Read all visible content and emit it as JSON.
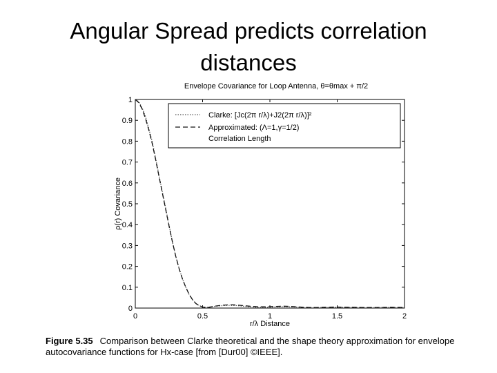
{
  "slide": {
    "title_line1": "Angular Spread predicts correlation",
    "title_line2": "distances"
  },
  "caption": {
    "figure_number": "Figure 5.35",
    "text": "Comparison between Clarke theoretical and the shape theory approximation for envelope autocovariance functions for Hx-case [from [Dur00] ©IEEE]."
  },
  "chart_data": {
    "type": "line",
    "title": "Envelope Covariance for Loop Antenna, θ=θmax + π/2",
    "xlabel": "r/λ  Distance",
    "ylabel": "ρ(r)  Covariance",
    "xlim": [
      0,
      2
    ],
    "ylim": [
      0,
      1
    ],
    "xticks": [
      "0",
      "0.5",
      "1",
      "1.5",
      "2"
    ],
    "yticks": [
      "0",
      "0.1",
      "0.2",
      "0.3",
      "0.4",
      "0.5",
      "0.6",
      "0.7",
      "0.8",
      "0.9",
      "1"
    ],
    "grid": false,
    "legend_position": "top-right",
    "legend": [
      "Clarke: [Jc(2π r/λ)+J2(2π r/λ)]²",
      "Approximated: (Λ=1,γ=1/2)",
      "Correlation Length"
    ],
    "series": [
      {
        "name": "Clarke: [Jc(2π r/λ)+J2(2π r/λ)]²",
        "style": "dotted",
        "x": [
          0,
          0.025,
          0.05,
          0.075,
          0.1,
          0.125,
          0.15,
          0.175,
          0.2,
          0.225,
          0.25,
          0.275,
          0.3,
          0.325,
          0.35,
          0.375,
          0.4,
          0.425,
          0.45,
          0.475,
          0.5,
          0.525,
          0.55,
          0.575,
          0.6,
          0.65,
          0.7,
          0.75,
          0.8,
          0.85,
          0.9,
          0.95,
          1.0,
          1.05,
          1.1,
          1.15,
          1.2,
          1.25,
          1.3,
          1.35,
          1.4,
          1.5,
          1.6,
          1.7,
          1.8,
          1.9,
          2.0
        ],
        "y": [
          1.0,
          0.99,
          0.96,
          0.92,
          0.86,
          0.8,
          0.72,
          0.64,
          0.56,
          0.48,
          0.4,
          0.32,
          0.25,
          0.19,
          0.14,
          0.1,
          0.065,
          0.04,
          0.022,
          0.012,
          0.006,
          0.004,
          0.005,
          0.007,
          0.009,
          0.012,
          0.013,
          0.012,
          0.009,
          0.006,
          0.004,
          0.003,
          0.004,
          0.006,
          0.007,
          0.006,
          0.005,
          0.003,
          0.002,
          0.002,
          0.003,
          0.004,
          0.003,
          0.002,
          0.002,
          0.003,
          0.002
        ]
      },
      {
        "name": "Approximated: (Λ=1,γ=1/2)",
        "style": "dashed",
        "x": [
          0,
          0.025,
          0.05,
          0.075,
          0.1,
          0.125,
          0.15,
          0.175,
          0.2,
          0.225,
          0.25,
          0.275,
          0.3,
          0.325,
          0.35,
          0.375,
          0.4,
          0.425,
          0.45,
          0.475,
          0.5,
          0.525,
          0.55,
          0.575,
          0.6,
          0.65,
          0.7,
          0.75,
          0.8,
          0.85,
          0.9,
          0.95,
          1.0,
          1.05,
          1.1,
          1.15,
          1.2,
          1.25,
          1.3,
          1.35,
          1.4,
          1.5,
          1.6,
          1.7,
          1.8,
          1.9,
          2.0
        ],
        "y": [
          1.0,
          0.985,
          0.955,
          0.91,
          0.855,
          0.79,
          0.715,
          0.635,
          0.555,
          0.475,
          0.395,
          0.32,
          0.25,
          0.19,
          0.14,
          0.1,
          0.066,
          0.04,
          0.022,
          0.011,
          0.005,
          0.003,
          0.004,
          0.007,
          0.01,
          0.014,
          0.016,
          0.015,
          0.012,
          0.009,
          0.007,
          0.006,
          0.007,
          0.008,
          0.009,
          0.008,
          0.006,
          0.004,
          0.003,
          0.003,
          0.004,
          0.005,
          0.004,
          0.003,
          0.003,
          0.004,
          0.003
        ]
      }
    ]
  },
  "colors": {
    "clarke": "#555555",
    "approximated": "#111111",
    "axis": "#000000"
  }
}
